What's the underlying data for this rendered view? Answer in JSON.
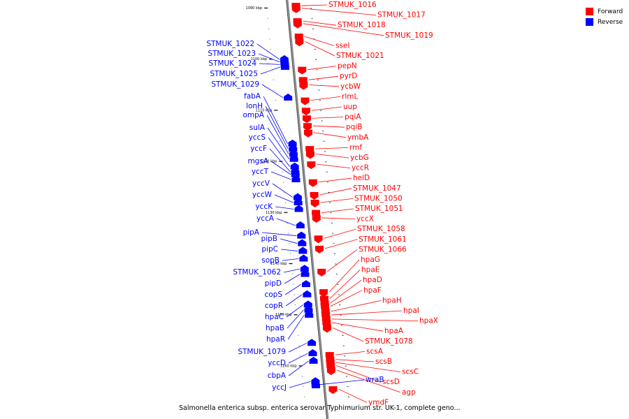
{
  "colors": {
    "forward": "#ff0000",
    "reverse": "#0000ff",
    "backbone": "#8c8c8c"
  },
  "legend": [
    {
      "label": "Forward",
      "color": "#ff0000"
    },
    {
      "label": "Reverse",
      "color": "#0000ff"
    }
  ],
  "caption": "Salmonella enterica subsp. enterica serovar Typhimurium str. UK-1, complete geno...",
  "scale_ticks": [
    {
      "label": "1090 kbp",
      "kbp": 1090
    },
    {
      "label": "1100 kbp",
      "kbp": 1100
    },
    {
      "label": "1110 kbp",
      "kbp": 1110
    },
    {
      "label": "1120 kbp",
      "kbp": 1120
    },
    {
      "label": "1130 kbp",
      "kbp": 1130
    },
    {
      "label": "1140 kbp",
      "kbp": 1140
    },
    {
      "label": "1150 kbp",
      "kbp": 1150
    },
    {
      "label": "1160 kbp",
      "kbp": 1160
    }
  ],
  "forward_genes": [
    {
      "name": "STMUK_1016",
      "kbp": 1089.0
    },
    {
      "name": "STMUK_1017",
      "kbp": 1089.5
    },
    {
      "name": "STMUK_1018",
      "kbp": 1092.0
    },
    {
      "name": "STMUK_1019",
      "kbp": 1092.5
    },
    {
      "name": "sseI",
      "kbp": 1095.0
    },
    {
      "name": "STMUK_1021",
      "kbp": 1096.0
    },
    {
      "name": "pepN",
      "kbp": 1101.5
    },
    {
      "name": "pyrD",
      "kbp": 1103.5
    },
    {
      "name": "ycbW",
      "kbp": 1104.5
    },
    {
      "name": "rlmL",
      "kbp": 1107.5
    },
    {
      "name": "uup",
      "kbp": 1109.5
    },
    {
      "name": "pqiA",
      "kbp": 1111.0
    },
    {
      "name": "pqiB",
      "kbp": 1112.5
    },
    {
      "name": "ymbA",
      "kbp": 1113.8
    },
    {
      "name": "rmf",
      "kbp": 1117.0
    },
    {
      "name": "ycbG",
      "kbp": 1118.0
    },
    {
      "name": "yccR",
      "kbp": 1120.0
    },
    {
      "name": "helD",
      "kbp": 1123.5
    },
    {
      "name": "STMUK_1047",
      "kbp": 1126.0
    },
    {
      "name": "STMUK_1050",
      "kbp": 1127.5
    },
    {
      "name": "STMUK_1051",
      "kbp": 1129.5
    },
    {
      "name": "yccX",
      "kbp": 1130.5
    },
    {
      "name": "STMUK_1058",
      "kbp": 1134.5
    },
    {
      "name": "STMUK_1061",
      "kbp": 1136.5
    },
    {
      "name": "STMUK_1066",
      "kbp": 1141.0
    },
    {
      "name": "hpaG",
      "kbp": 1145.0
    },
    {
      "name": "hpaE",
      "kbp": 1146.3
    },
    {
      "name": "hpaD",
      "kbp": 1147.2
    },
    {
      "name": "hpaF",
      "kbp": 1147.8
    },
    {
      "name": "hpaH",
      "kbp": 1148.8
    },
    {
      "name": "hpaI",
      "kbp": 1149.5
    },
    {
      "name": "hpaX",
      "kbp": 1150.3
    },
    {
      "name": "hpaA",
      "kbp": 1151.0
    },
    {
      "name": "STMUK_1078",
      "kbp": 1152.0
    },
    {
      "name": "scsA",
      "kbp": 1157.3
    },
    {
      "name": "scsB",
      "kbp": 1158.2
    },
    {
      "name": "scsC",
      "kbp": 1158.8
    },
    {
      "name": "scsD",
      "kbp": 1159.4
    },
    {
      "name": "agp",
      "kbp": 1160.3
    },
    {
      "name": "ymdF",
      "kbp": 1164.0
    }
  ],
  "reverse_genes": [
    {
      "name": "STMUK_1022",
      "kbp": 1099.5
    },
    {
      "name": "STMUK_1023",
      "kbp": 1100.0
    },
    {
      "name": "STMUK_1024",
      "kbp": 1100.5
    },
    {
      "name": "STMUK_1025",
      "kbp": 1101.0
    },
    {
      "name": "STMUK_1029",
      "kbp": 1107.0
    },
    {
      "name": "fabA",
      "kbp": 1116.0
    },
    {
      "name": "lonH",
      "kbp": 1117.0
    },
    {
      "name": "ompA",
      "kbp": 1118.0
    },
    {
      "name": "sulA",
      "kbp": 1119.0
    },
    {
      "name": "yccS",
      "kbp": 1120.5
    },
    {
      "name": "yccF",
      "kbp": 1121.5
    },
    {
      "name": "mgsA",
      "kbp": 1122.0
    },
    {
      "name": "yccT",
      "kbp": 1123.0
    },
    {
      "name": "yccV",
      "kbp": 1126.5
    },
    {
      "name": "yccW",
      "kbp": 1127.5
    },
    {
      "name": "yccK",
      "kbp": 1128.8
    },
    {
      "name": "yccA",
      "kbp": 1132.0
    },
    {
      "name": "pipA",
      "kbp": 1134.0
    },
    {
      "name": "pipB",
      "kbp": 1135.5
    },
    {
      "name": "pipC",
      "kbp": 1137.0
    },
    {
      "name": "sopB",
      "kbp": 1138.5
    },
    {
      "name": "STMUK_1062",
      "kbp": 1140.5
    },
    {
      "name": "pipD",
      "kbp": 1141.5
    },
    {
      "name": "copS",
      "kbp": 1143.5
    },
    {
      "name": "copR",
      "kbp": 1145.5
    },
    {
      "name": "hpaC",
      "kbp": 1147.5
    },
    {
      "name": "hpaB",
      "kbp": 1148.5
    },
    {
      "name": "hpaR",
      "kbp": 1149.5
    },
    {
      "name": "STMUK_1079",
      "kbp": 1155.0
    },
    {
      "name": "yccD",
      "kbp": 1157.0
    },
    {
      "name": "cbpA",
      "kbp": 1158.5
    },
    {
      "name": "yccJ",
      "kbp": 1162.5
    },
    {
      "name": "wraB",
      "kbp": 1163.3
    }
  ]
}
